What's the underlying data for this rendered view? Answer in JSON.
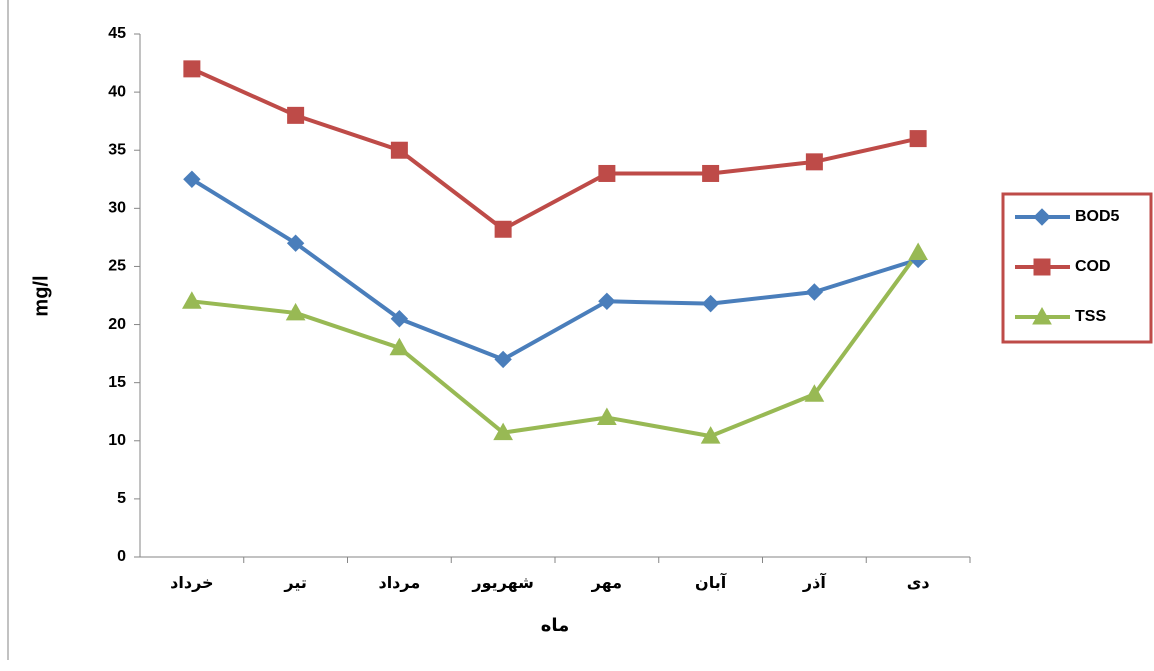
{
  "chart_data": {
    "type": "line",
    "y_label": "mg/l",
    "x_label": "ماه",
    "categories": [
      "خرداد",
      "تیر",
      "مرداد",
      "شهریور",
      "مهر",
      "آبان",
      "آذر",
      "دی"
    ],
    "series": [
      {
        "name": "BOD5",
        "color": "#4a7ebb",
        "marker": "diamond",
        "values": [
          32.5,
          27,
          20.5,
          17,
          22,
          21.8,
          22.8,
          25.6
        ]
      },
      {
        "name": "COD",
        "color": "#be4b48",
        "marker": "square",
        "values": [
          42,
          38,
          35,
          28.2,
          33,
          33,
          34,
          36
        ]
      },
      {
        "name": "TSS",
        "color": "#98b954",
        "marker": "triangle",
        "values": [
          22,
          21,
          18,
          10.7,
          12,
          10.4,
          14,
          26.2
        ]
      }
    ],
    "ylim": [
      0,
      45
    ],
    "yticks": [
      0,
      5,
      10,
      15,
      20,
      25,
      30,
      35,
      40,
      45
    ],
    "legend": "right",
    "legend_border": "#be4b48"
  }
}
